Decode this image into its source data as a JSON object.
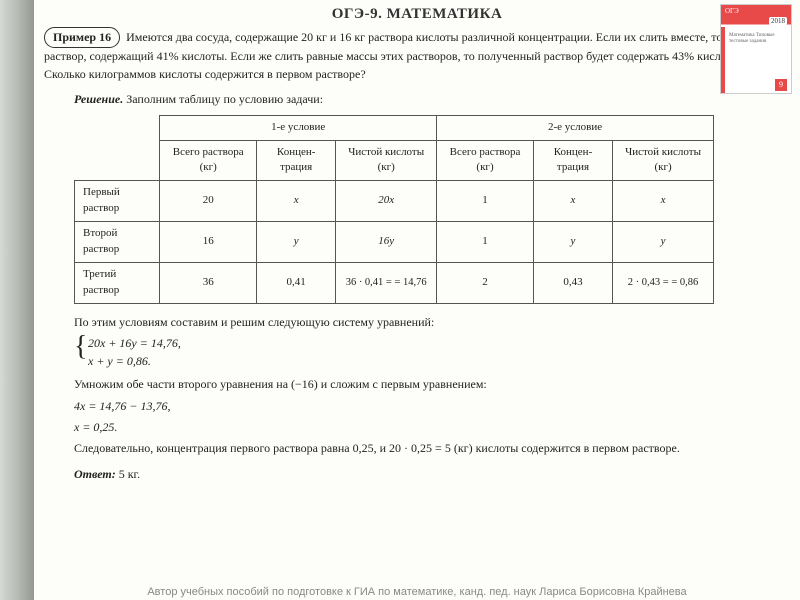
{
  "header": {
    "title": "ОГЭ-9.  МАТЕМАТИКА"
  },
  "book": {
    "label": "ОГЭ",
    "year": "2018",
    "grade": "9",
    "desc": "Математика Типовые тестовые задания"
  },
  "example": {
    "badge": "Пример 16",
    "text": "Имеются два сосуда, содержащие 20 кг и 16 кг раствора кислоты различной концентрации. Если их слить вместе, то получим раствор, содержащий 41% кислоты. Если же слить равные массы этих растворов, то полученный раствор будет содержать 43% кислоты. Сколько килограммов кислоты содержится в первом растворе?"
  },
  "solution": {
    "label": "Решение.",
    "intro": "Заполним таблицу по условию задачи:"
  },
  "table": {
    "group1": "1-е условие",
    "group2": "2-е условие",
    "col_total": "Всего раствора (кг)",
    "col_conc": "Концен-трация",
    "col_pure": "Чистой кислоты (кг)",
    "row1_label": "Первый раствор",
    "row2_label": "Второй раствор",
    "row3_label": "Третий раствор",
    "r1": {
      "c1": "20",
      "c2": "x",
      "c3": "20x",
      "c4": "1",
      "c5": "x",
      "c6": "x"
    },
    "r2": {
      "c1": "16",
      "c2": "y",
      "c3": "16y",
      "c4": "1",
      "c5": "y",
      "c6": "y"
    },
    "r3": {
      "c1": "36",
      "c2": "0,41",
      "c3": "36 · 0,41 = = 14,76",
      "c4": "2",
      "c5": "0,43",
      "c6": "2 · 0,43 = = 0,86"
    }
  },
  "post": {
    "p1": "По этим условиям составим и решим следующую систему уравнений:",
    "eq1": "20x + 16y = 14,76,",
    "eq2": "x + y = 0,86.",
    "p2": "Умножим обе части второго уравнения на (−16) и сложим с первым уравнением:",
    "eq3": "4x = 14,76 − 13,76,",
    "eq4": "x = 0,25.",
    "p3": "Следовательно, концентрация первого раствора равна 0,25, и 20 · 0,25 = 5 (кг) кислоты содержится в первом растворе."
  },
  "answer": {
    "label": "Ответ:",
    "value": "5 кг."
  },
  "footer": {
    "text": "Автор учебных пособий по подготовке к ГИА по математике,  канд. пед. наук  Лариса Борисовна Крайнева"
  }
}
